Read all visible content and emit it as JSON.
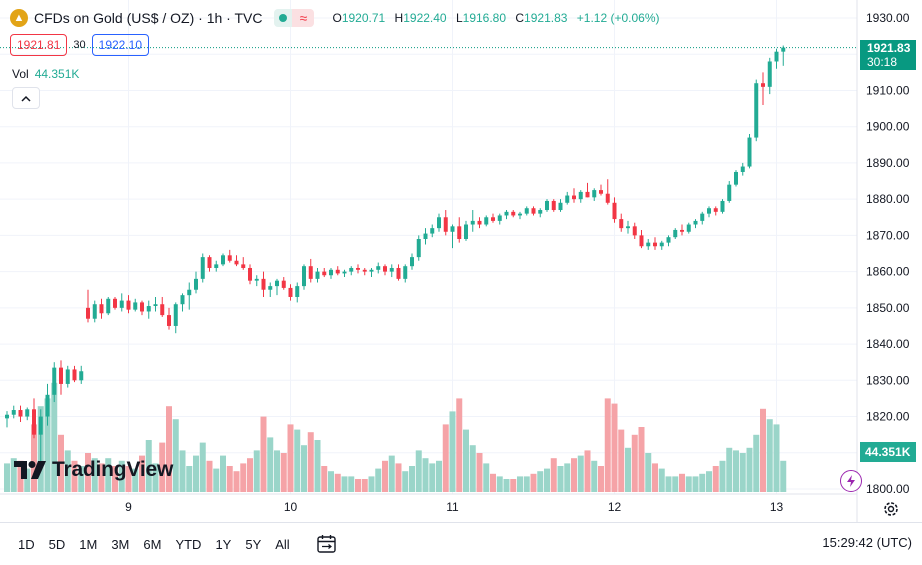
{
  "header": {
    "symbol_title": "CFDs on Gold (US$ / OZ) · 1h · TVC",
    "delay_icon": "≈",
    "ohlc": {
      "o_label": "O",
      "o": "1920.71",
      "h_label": "H",
      "h": "1922.40",
      "l_label": "L",
      "l": "1916.80",
      "c_label": "C",
      "c": "1921.83",
      "change": "+1.12 (+0.06%)"
    }
  },
  "quote": {
    "bid": "1921.81",
    "spread": "30",
    "ask": "1922.10"
  },
  "volume_legend": {
    "label": "Vol",
    "value": "44.351K"
  },
  "collapse_glyph": "^",
  "price_badge": {
    "price": "1921.83",
    "countdown": "30:18"
  },
  "volume_badge": "44.351K",
  "logo_text": "TradingView",
  "bottom": {
    "ranges": [
      "1D",
      "5D",
      "1M",
      "3M",
      "6M",
      "YTD",
      "1Y",
      "5Y",
      "All"
    ],
    "clock": "15:29:42 (UTC)"
  },
  "colors": {
    "up": "#22ab94",
    "down": "#f23645",
    "vol_up": "#9ad5c9",
    "vol_down": "#f5a3a7",
    "grid": "#f0f3fa",
    "axis_text": "#131722"
  },
  "icons": {
    "gold": "gold-coin-icon",
    "settings": "gear-icon",
    "calendar": "calendar-range-icon",
    "events": "economic-event-icon"
  },
  "chart_data": {
    "type": "candlestick",
    "timeframe": "1h",
    "price_ticks": [
      1800,
      1810,
      1820,
      1830,
      1840,
      1850,
      1860,
      1870,
      1880,
      1890,
      1900,
      1910,
      1920,
      1930
    ],
    "price_range": [
      1800,
      1932
    ],
    "x_ticks": [
      {
        "label": "9",
        "index": 18
      },
      {
        "label": "10",
        "index": 42
      },
      {
        "label": "11",
        "index": 66
      },
      {
        "label": "12",
        "index": 90
      },
      {
        "label": "13",
        "index": 114
      }
    ],
    "current_price": 1921.83,
    "candles": [
      [
        1819.5,
        1821.5,
        1817.0,
        1820.5,
        1.1
      ],
      [
        1820.5,
        1823.0,
        1819.5,
        1821.8,
        1.3
      ],
      [
        1821.8,
        1823.0,
        1818.5,
        1820.0,
        1.2
      ],
      [
        1820.0,
        1822.5,
        1819.0,
        1822.0,
        0.9
      ],
      [
        1822.0,
        1825.0,
        1814.0,
        1815.0,
        2.6
      ],
      [
        1815.0,
        1822.0,
        1807.0,
        1820.0,
        3.3
      ],
      [
        1820.0,
        1829.0,
        1817.5,
        1826.0,
        3.6
      ],
      [
        1826.0,
        1835.0,
        1824.0,
        1833.5,
        4.2
      ],
      [
        1833.5,
        1835.5,
        1826.0,
        1829.0,
        2.2
      ],
      [
        1829.0,
        1834.0,
        1828.0,
        1833.0,
        1.6
      ],
      [
        1833.0,
        1834.0,
        1829.5,
        1830.0,
        1.2
      ],
      [
        1830.0,
        1834.0,
        1829.0,
        1832.5,
        1.0
      ],
      [
        1850.0,
        1855.0,
        1846.0,
        1847.0,
        1.5
      ],
      [
        1847.0,
        1852.0,
        1846.0,
        1851.0,
        1.3
      ],
      [
        1851.0,
        1852.5,
        1847.0,
        1848.5,
        1.1
      ],
      [
        1848.5,
        1853.0,
        1848.0,
        1852.5,
        1.3
      ],
      [
        1852.5,
        1853.0,
        1849.5,
        1850.0,
        1.0
      ],
      [
        1850.0,
        1854.0,
        1849.0,
        1852.0,
        1.2
      ],
      [
        1852.0,
        1853.5,
        1848.5,
        1849.5,
        1.0
      ],
      [
        1849.5,
        1852.5,
        1849.0,
        1851.5,
        0.9
      ],
      [
        1851.5,
        1852.0,
        1848.0,
        1849.0,
        1.4
      ],
      [
        1849.0,
        1852.0,
        1847.0,
        1850.5,
        2.0
      ],
      [
        1850.5,
        1853.0,
        1849.0,
        1851.0,
        1.1
      ],
      [
        1851.0,
        1853.0,
        1847.5,
        1848.0,
        1.9
      ],
      [
        1848.0,
        1850.0,
        1844.0,
        1845.0,
        3.3
      ],
      [
        1845.0,
        1851.5,
        1843.0,
        1851.0,
        2.8
      ],
      [
        1851.0,
        1854.0,
        1849.0,
        1853.5,
        1.6
      ],
      [
        1853.5,
        1857.0,
        1849.5,
        1855.0,
        1.0
      ],
      [
        1855.0,
        1860.0,
        1854.0,
        1858.0,
        1.4
      ],
      [
        1858.0,
        1865.0,
        1857.0,
        1864.0,
        1.9
      ],
      [
        1864.0,
        1864.5,
        1860.0,
        1861.0,
        1.2
      ],
      [
        1861.0,
        1863.0,
        1860.0,
        1862.0,
        0.9
      ],
      [
        1862.0,
        1865.0,
        1861.5,
        1864.5,
        1.4
      ],
      [
        1864.5,
        1866.0,
        1862.5,
        1863.0,
        1.0
      ],
      [
        1863.0,
        1864.5,
        1861.5,
        1862.0,
        0.8
      ],
      [
        1862.0,
        1864.0,
        1860.5,
        1861.0,
        1.1
      ],
      [
        1861.0,
        1862.0,
        1856.5,
        1857.5,
        1.3
      ],
      [
        1857.5,
        1859.0,
        1856.0,
        1858.0,
        1.6
      ],
      [
        1858.0,
        1860.0,
        1853.0,
        1855.0,
        2.9
      ],
      [
        1855.0,
        1857.0,
        1853.0,
        1856.0,
        2.1
      ],
      [
        1856.0,
        1858.0,
        1853.5,
        1857.5,
        1.6
      ],
      [
        1857.5,
        1858.5,
        1855.0,
        1855.5,
        1.5
      ],
      [
        1855.5,
        1856.5,
        1852.0,
        1853.0,
        2.6
      ],
      [
        1853.0,
        1857.0,
        1851.5,
        1856.0,
        2.4
      ],
      [
        1856.0,
        1862.0,
        1855.0,
        1861.5,
        1.8
      ],
      [
        1861.5,
        1863.5,
        1857.0,
        1858.0,
        2.3
      ],
      [
        1858.0,
        1861.0,
        1857.0,
        1860.0,
        2.0
      ],
      [
        1860.0,
        1861.0,
        1858.5,
        1859.0,
        1.0
      ],
      [
        1859.0,
        1861.0,
        1858.0,
        1860.5,
        0.8
      ],
      [
        1860.5,
        1861.5,
        1859.0,
        1859.5,
        0.7
      ],
      [
        1859.5,
        1860.5,
        1858.5,
        1860.0,
        0.6
      ],
      [
        1860.0,
        1861.5,
        1859.0,
        1861.0,
        0.6
      ],
      [
        1861.0,
        1862.0,
        1859.5,
        1860.5,
        0.5
      ],
      [
        1860.5,
        1861.0,
        1859.0,
        1860.0,
        0.5
      ],
      [
        1860.0,
        1861.0,
        1858.5,
        1860.5,
        0.6
      ],
      [
        1860.5,
        1862.5,
        1859.5,
        1861.5,
        0.9
      ],
      [
        1861.5,
        1862.0,
        1859.0,
        1860.0,
        1.2
      ],
      [
        1860.0,
        1862.0,
        1858.5,
        1861.0,
        1.4
      ],
      [
        1861.0,
        1862.0,
        1857.5,
        1858.0,
        1.1
      ],
      [
        1858.0,
        1862.0,
        1857.0,
        1861.5,
        0.8
      ],
      [
        1861.5,
        1865.0,
        1860.5,
        1864.0,
        1.0
      ],
      [
        1864.0,
        1870.0,
        1863.0,
        1869.0,
        1.6
      ],
      [
        1869.0,
        1872.0,
        1867.5,
        1870.5,
        1.3
      ],
      [
        1870.5,
        1873.0,
        1869.5,
        1872.0,
        1.1
      ],
      [
        1872.0,
        1876.0,
        1871.0,
        1875.0,
        1.2
      ],
      [
        1875.0,
        1877.0,
        1870.0,
        1871.0,
        2.6
      ],
      [
        1871.0,
        1873.0,
        1866.5,
        1872.5,
        3.1
      ],
      [
        1872.5,
        1875.0,
        1868.0,
        1869.0,
        3.6
      ],
      [
        1869.0,
        1874.0,
        1868.5,
        1873.0,
        2.4
      ],
      [
        1873.0,
        1877.0,
        1871.0,
        1874.0,
        1.8
      ],
      [
        1874.0,
        1875.0,
        1872.0,
        1873.0,
        1.5
      ],
      [
        1873.0,
        1875.5,
        1872.5,
        1875.0,
        1.1
      ],
      [
        1875.0,
        1876.0,
        1873.5,
        1874.0,
        0.7
      ],
      [
        1874.0,
        1876.0,
        1873.0,
        1875.5,
        0.6
      ],
      [
        1875.5,
        1877.0,
        1874.5,
        1876.5,
        0.5
      ],
      [
        1876.5,
        1877.0,
        1875.0,
        1875.5,
        0.5
      ],
      [
        1875.5,
        1876.5,
        1874.5,
        1876.0,
        0.6
      ],
      [
        1876.0,
        1878.0,
        1875.5,
        1877.5,
        0.6
      ],
      [
        1877.5,
        1878.0,
        1875.5,
        1876.0,
        0.7
      ],
      [
        1876.0,
        1877.5,
        1875.0,
        1877.0,
        0.8
      ],
      [
        1877.0,
        1880.0,
        1876.5,
        1879.5,
        0.9
      ],
      [
        1879.5,
        1880.0,
        1876.5,
        1877.0,
        1.3
      ],
      [
        1877.0,
        1880.0,
        1876.5,
        1879.0,
        1.0
      ],
      [
        1879.0,
        1882.0,
        1878.5,
        1881.0,
        1.1
      ],
      [
        1881.0,
        1883.0,
        1879.0,
        1880.0,
        1.3
      ],
      [
        1880.0,
        1882.5,
        1879.0,
        1882.0,
        1.4
      ],
      [
        1882.0,
        1884.5,
        1880.5,
        1880.5,
        1.6
      ],
      [
        1880.5,
        1883.0,
        1879.5,
        1882.5,
        1.2
      ],
      [
        1882.5,
        1884.0,
        1881.0,
        1881.5,
        1.0
      ],
      [
        1881.5,
        1885.5,
        1878.5,
        1879.0,
        3.6
      ],
      [
        1879.0,
        1880.5,
        1873.5,
        1874.5,
        3.4
      ],
      [
        1874.5,
        1876.0,
        1871.0,
        1872.0,
        2.4
      ],
      [
        1872.0,
        1874.0,
        1870.5,
        1872.5,
        1.7
      ],
      [
        1872.5,
        1873.5,
        1869.0,
        1870.0,
        2.2
      ],
      [
        1870.0,
        1871.5,
        1866.5,
        1867.0,
        2.5
      ],
      [
        1867.0,
        1869.0,
        1866.0,
        1868.0,
        1.5
      ],
      [
        1868.0,
        1869.5,
        1866.0,
        1867.0,
        1.1
      ],
      [
        1867.0,
        1868.5,
        1866.0,
        1868.0,
        0.9
      ],
      [
        1868.0,
        1870.0,
        1867.0,
        1869.5,
        0.6
      ],
      [
        1869.5,
        1872.0,
        1869.0,
        1871.5,
        0.6
      ],
      [
        1871.5,
        1873.0,
        1870.0,
        1871.0,
        0.7
      ],
      [
        1871.0,
        1873.5,
        1870.5,
        1873.0,
        0.6
      ],
      [
        1873.0,
        1874.5,
        1872.0,
        1874.0,
        0.6
      ],
      [
        1874.0,
        1876.5,
        1873.0,
        1876.0,
        0.7
      ],
      [
        1876.0,
        1878.0,
        1875.0,
        1877.5,
        0.8
      ],
      [
        1877.5,
        1878.0,
        1875.5,
        1876.5,
        1.0
      ],
      [
        1876.5,
        1880.0,
        1876.0,
        1879.5,
        1.2
      ],
      [
        1879.5,
        1885.0,
        1879.0,
        1884.0,
        1.7
      ],
      [
        1884.0,
        1888.0,
        1883.5,
        1887.5,
        1.6
      ],
      [
        1887.5,
        1890.0,
        1886.5,
        1889.0,
        1.5
      ],
      [
        1889.0,
        1898.0,
        1888.5,
        1897.0,
        1.7
      ],
      [
        1897.0,
        1913.0,
        1896.0,
        1912.0,
        2.2
      ],
      [
        1912.0,
        1915.0,
        1906.0,
        1911.0,
        3.2
      ],
      [
        1911.0,
        1919.0,
        1909.0,
        1918.0,
        2.8
      ],
      [
        1918.0,
        1921.5,
        1916.0,
        1920.7,
        2.6
      ],
      [
        1920.71,
        1922.4,
        1916.8,
        1921.83,
        1.2
      ]
    ]
  }
}
